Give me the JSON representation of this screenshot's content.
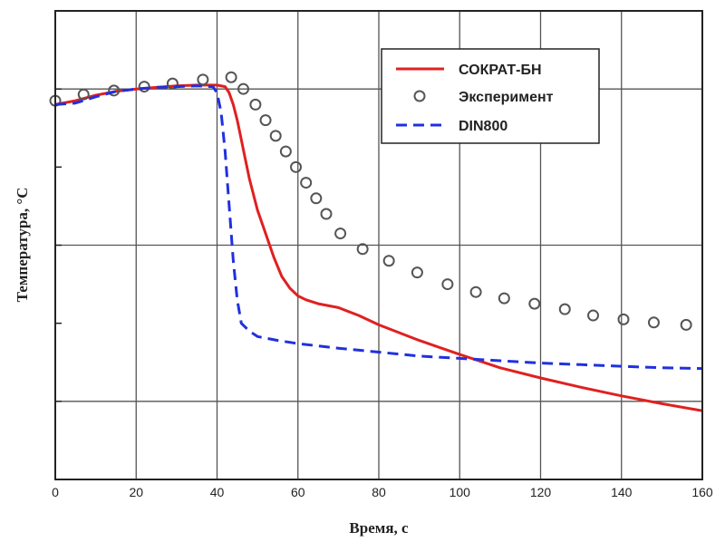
{
  "chart_data": {
    "type": "line",
    "title": "",
    "xlabel": "Время, с",
    "ylabel": "Температура, °C",
    "xlim": [
      0,
      160
    ],
    "ylim": [
      0,
      6
    ],
    "x_ticks": [
      0,
      20,
      40,
      60,
      80,
      100,
      120,
      140,
      160
    ],
    "grid": true,
    "legend_position": "top-right",
    "series": [
      {
        "name": "СОКРАТ-БН",
        "style": "solid",
        "color": "#e02020",
        "x": [
          0,
          5,
          10,
          15,
          20,
          25,
          30,
          35,
          40,
          42,
          43,
          44,
          45,
          46,
          47,
          48,
          50,
          52,
          54,
          56,
          58,
          60,
          62,
          65,
          70,
          75,
          80,
          90,
          100,
          110,
          120,
          130,
          140,
          150,
          160
        ],
        "y": [
          4.8,
          4.85,
          4.92,
          4.97,
          5.0,
          5.02,
          5.04,
          5.05,
          5.05,
          5.03,
          4.95,
          4.8,
          4.6,
          4.35,
          4.1,
          3.85,
          3.45,
          3.15,
          2.85,
          2.6,
          2.45,
          2.35,
          2.3,
          2.25,
          2.2,
          2.1,
          1.98,
          1.78,
          1.6,
          1.43,
          1.3,
          1.18,
          1.07,
          0.97,
          0.88
        ]
      },
      {
        "name": "Эксперимент",
        "style": "markers",
        "color": "#555555",
        "x": [
          0,
          7,
          14.5,
          22,
          29,
          36.5,
          43.5,
          46.5,
          49.5,
          52,
          54.5,
          57,
          59.5,
          62,
          64.5,
          67,
          70.5,
          76,
          82.5,
          89.5,
          97,
          104,
          111,
          118.5,
          126,
          133,
          140.5,
          148,
          156
        ],
        "y": [
          4.85,
          4.93,
          4.98,
          5.03,
          5.07,
          5.12,
          5.15,
          5.0,
          4.8,
          4.6,
          4.4,
          4.2,
          4.0,
          3.8,
          3.6,
          3.4,
          3.15,
          2.95,
          2.8,
          2.65,
          2.5,
          2.4,
          2.32,
          2.25,
          2.18,
          2.1,
          2.05,
          2.01,
          1.98
        ]
      },
      {
        "name": "DIN800",
        "style": "dashed",
        "color": "#2030e0",
        "x": [
          0,
          5,
          10,
          15,
          20,
          25,
          30,
          35,
          39,
          40,
          41,
          42,
          43,
          44,
          45,
          46,
          48,
          50,
          55,
          60,
          70,
          80,
          90,
          100,
          110,
          120,
          130,
          140,
          150,
          160
        ],
        "y": [
          4.8,
          4.82,
          4.9,
          4.97,
          5.0,
          5.02,
          5.03,
          5.04,
          5.03,
          4.95,
          4.7,
          4.2,
          3.5,
          2.8,
          2.3,
          2.0,
          1.9,
          1.83,
          1.78,
          1.74,
          1.68,
          1.63,
          1.58,
          1.55,
          1.52,
          1.49,
          1.47,
          1.45,
          1.43,
          1.42
        ]
      }
    ]
  }
}
